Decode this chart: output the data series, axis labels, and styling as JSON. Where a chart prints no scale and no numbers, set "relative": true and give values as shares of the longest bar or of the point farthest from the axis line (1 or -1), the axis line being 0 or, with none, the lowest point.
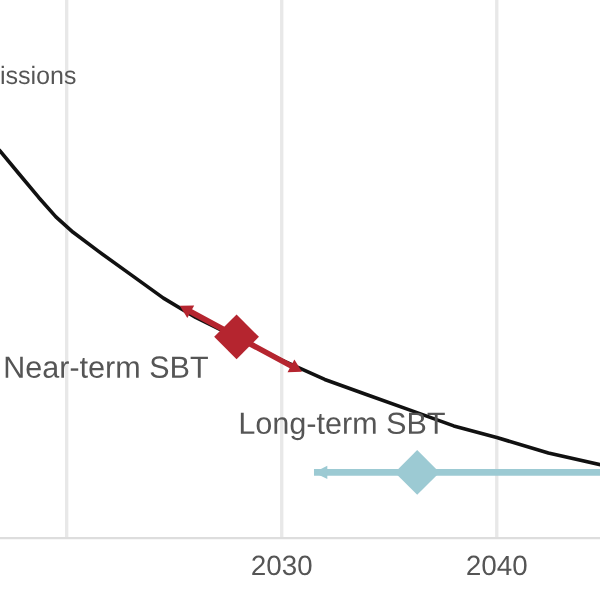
{
  "chart_data": {
    "type": "line",
    "relative": true,
    "xlim": [
      2016.9,
      2044.8
    ],
    "xticks": [
      {
        "value": 2020,
        "label": null
      },
      2030,
      2040
    ],
    "grid": "x",
    "series": [
      {
        "name": "issions",
        "color": "#111111",
        "x": [
          2016.9,
          2017.8,
          2018.7,
          2019.5,
          2020.3,
          2021.5,
          2023,
          2024.5,
          2026,
          2030,
          2032,
          2034,
          2036,
          2038,
          2040,
          2042.4,
          2044.8
        ],
        "values": [
          1,
          0.94,
          0.88,
          0.83,
          0.79,
          0.74,
          0.68,
          0.62,
          0.57,
          0.46,
          0.41,
          0.37,
          0.33,
          0.29,
          0.26,
          0.22,
          0.19
        ]
      },
      {
        "name": "Near-term SBT",
        "color": "#b5252f",
        "line_style": "solid",
        "marker": "triangle",
        "x": [
          2025.6,
          2030.6
        ],
        "values": [
          0.59,
          0.44
        ]
      },
      {
        "type": "scatter",
        "color": "#b5252f",
        "marker": "diamond",
        "x": [
          2027.9
        ],
        "values": [
          0.52
        ]
      },
      {
        "name": "Long-term SBT",
        "type": "scatter",
        "color": "#9ccad3",
        "marker": "diamond",
        "x": [
          2036.3
        ],
        "values": [
          0.17
        ],
        "xerrors": [
          [
            2031.5,
            2044.8
          ]
        ]
      }
    ]
  }
}
